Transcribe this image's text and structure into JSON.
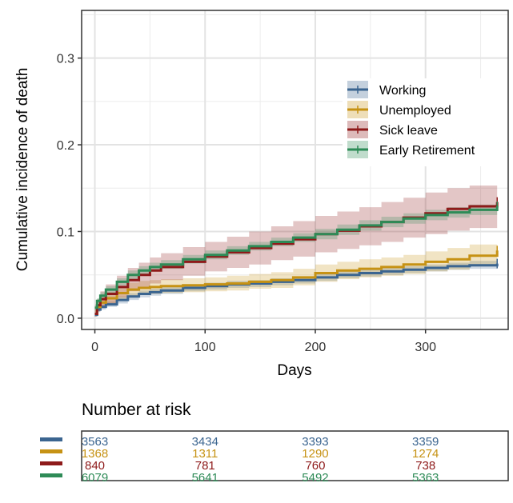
{
  "chart_data": [
    {
      "type": "line",
      "title": "",
      "xlabel": "Days",
      "ylabel": "Cumulative incidence of death",
      "xlim": [
        -12,
        375
      ],
      "ylim": [
        -0.013,
        0.355
      ],
      "x_ticks": [
        0,
        100,
        200,
        300
      ],
      "x_tick_labels": [
        "0",
        "100",
        "200",
        "300"
      ],
      "y_ticks": [
        0.0,
        0.1,
        0.2,
        0.3
      ],
      "y_tick_labels": [
        "0.0",
        "0.1",
        "0.2",
        "0.3"
      ],
      "grid": true,
      "legend_position": "right",
      "confidence_bands": true,
      "series": [
        {
          "name": "Working",
          "color": "#3B6590",
          "x": [
            0,
            2,
            5,
            10,
            20,
            30,
            40,
            50,
            60,
            80,
            100,
            120,
            140,
            160,
            180,
            200,
            220,
            240,
            260,
            280,
            300,
            320,
            340,
            365
          ],
          "values": [
            0.004,
            0.01,
            0.013,
            0.016,
            0.021,
            0.025,
            0.028,
            0.03,
            0.032,
            0.035,
            0.037,
            0.039,
            0.04,
            0.042,
            0.044,
            0.047,
            0.05,
            0.052,
            0.054,
            0.056,
            0.058,
            0.06,
            0.061,
            0.063
          ],
          "lower": [
            0.002,
            0.007,
            0.01,
            0.013,
            0.017,
            0.021,
            0.024,
            0.026,
            0.028,
            0.031,
            0.033,
            0.035,
            0.036,
            0.038,
            0.04,
            0.043,
            0.046,
            0.048,
            0.05,
            0.052,
            0.054,
            0.056,
            0.057,
            0.058
          ],
          "upper": [
            0.006,
            0.013,
            0.016,
            0.019,
            0.025,
            0.029,
            0.032,
            0.034,
            0.036,
            0.039,
            0.041,
            0.043,
            0.044,
            0.046,
            0.048,
            0.051,
            0.054,
            0.056,
            0.058,
            0.06,
            0.062,
            0.064,
            0.066,
            0.068
          ]
        },
        {
          "name": "Unemployed",
          "color": "#C69214",
          "x": [
            0,
            2,
            5,
            10,
            20,
            30,
            40,
            50,
            60,
            80,
            100,
            120,
            140,
            160,
            180,
            200,
            220,
            240,
            260,
            280,
            300,
            320,
            340,
            365
          ],
          "values": [
            0.005,
            0.013,
            0.018,
            0.023,
            0.029,
            0.033,
            0.035,
            0.036,
            0.037,
            0.038,
            0.039,
            0.04,
            0.042,
            0.044,
            0.047,
            0.052,
            0.055,
            0.057,
            0.059,
            0.062,
            0.065,
            0.068,
            0.072,
            0.078
          ],
          "lower": [
            0.002,
            0.008,
            0.012,
            0.016,
            0.021,
            0.025,
            0.027,
            0.028,
            0.029,
            0.03,
            0.031,
            0.032,
            0.034,
            0.035,
            0.038,
            0.042,
            0.045,
            0.047,
            0.049,
            0.051,
            0.054,
            0.056,
            0.06,
            0.064
          ],
          "upper": [
            0.009,
            0.018,
            0.024,
            0.03,
            0.037,
            0.041,
            0.043,
            0.044,
            0.045,
            0.046,
            0.047,
            0.049,
            0.051,
            0.053,
            0.057,
            0.062,
            0.065,
            0.068,
            0.07,
            0.073,
            0.077,
            0.081,
            0.085,
            0.093
          ]
        },
        {
          "name": "Sick leave",
          "color": "#8E1A1A",
          "x": [
            0,
            2,
            5,
            10,
            20,
            30,
            40,
            50,
            60,
            80,
            100,
            120,
            140,
            160,
            180,
            200,
            220,
            240,
            260,
            280,
            300,
            320,
            340,
            365
          ],
          "values": [
            0.005,
            0.015,
            0.022,
            0.028,
            0.036,
            0.044,
            0.05,
            0.055,
            0.059,
            0.065,
            0.071,
            0.076,
            0.081,
            0.086,
            0.091,
            0.097,
            0.101,
            0.106,
            0.111,
            0.116,
            0.121,
            0.126,
            0.129,
            0.134
          ],
          "lower": [
            0.002,
            0.008,
            0.013,
            0.017,
            0.024,
            0.031,
            0.036,
            0.04,
            0.044,
            0.049,
            0.054,
            0.058,
            0.062,
            0.067,
            0.071,
            0.076,
            0.08,
            0.084,
            0.088,
            0.093,
            0.097,
            0.101,
            0.104,
            0.11
          ],
          "upper": [
            0.01,
            0.022,
            0.031,
            0.039,
            0.049,
            0.058,
            0.064,
            0.07,
            0.075,
            0.082,
            0.088,
            0.094,
            0.1,
            0.106,
            0.112,
            0.118,
            0.123,
            0.128,
            0.134,
            0.139,
            0.145,
            0.15,
            0.153,
            0.158
          ]
        },
        {
          "name": "Early Retirement",
          "color": "#2E8B57",
          "x": [
            0,
            2,
            5,
            10,
            20,
            30,
            40,
            50,
            60,
            80,
            100,
            120,
            140,
            160,
            180,
            200,
            220,
            240,
            260,
            280,
            300,
            320,
            340,
            365
          ],
          "values": [
            0.012,
            0.02,
            0.026,
            0.033,
            0.042,
            0.05,
            0.055,
            0.059,
            0.062,
            0.068,
            0.073,
            0.078,
            0.083,
            0.088,
            0.093,
            0.097,
            0.102,
            0.107,
            0.111,
            0.115,
            0.119,
            0.122,
            0.125,
            0.129
          ],
          "lower": [
            0.009,
            0.017,
            0.022,
            0.029,
            0.038,
            0.045,
            0.05,
            0.054,
            0.057,
            0.063,
            0.068,
            0.073,
            0.078,
            0.083,
            0.088,
            0.091,
            0.096,
            0.101,
            0.105,
            0.109,
            0.113,
            0.116,
            0.119,
            0.122
          ],
          "upper": [
            0.015,
            0.023,
            0.03,
            0.037,
            0.046,
            0.055,
            0.06,
            0.064,
            0.067,
            0.073,
            0.078,
            0.083,
            0.088,
            0.093,
            0.098,
            0.103,
            0.108,
            0.113,
            0.117,
            0.121,
            0.125,
            0.128,
            0.131,
            0.136
          ]
        }
      ]
    },
    {
      "type": "table",
      "title": "Number at risk",
      "columns_at_days": [
        0,
        100,
        200,
        300
      ],
      "rows": [
        {
          "color": "#3B6590",
          "values": [
            "3563",
            "3434",
            "3393",
            "3359"
          ]
        },
        {
          "color": "#C69214",
          "values": [
            "1368",
            "1311",
            "1290",
            "1274"
          ]
        },
        {
          "color": "#8E1A1A",
          "values": [
            "840",
            "781",
            "760",
            "738"
          ]
        },
        {
          "color": "#2E8B57",
          "values": [
            "6079",
            "5641",
            "5492",
            "5363"
          ]
        }
      ]
    }
  ]
}
